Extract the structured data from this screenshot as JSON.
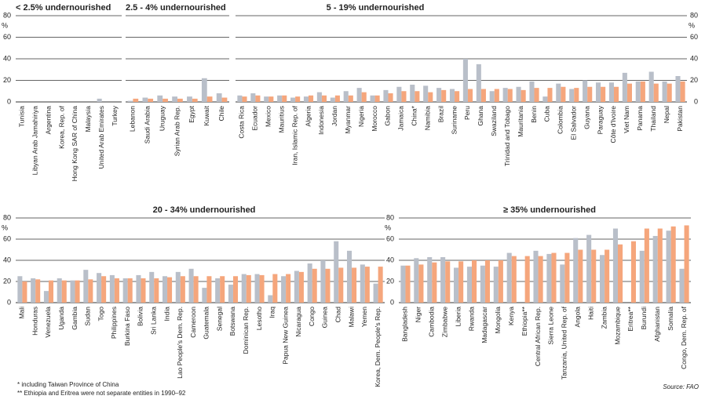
{
  "chart_data": [
    {
      "type": "bar",
      "title": "< 2.5% undernourished",
      "ylabel": "%",
      "ytick_side": "left",
      "categories": [
        "Tunisia",
        "Libyan Arab Jamahiriya",
        "Argentina",
        "Korea, Rep. of",
        "Hong Kong SAR of China",
        "Malaysia",
        "United Arab Emirates",
        "Turkey"
      ],
      "series": [
        {
          "color": "#b9bfc9",
          "values": [
            0,
            0,
            0,
            0,
            0,
            0,
            3,
            0
          ]
        },
        {
          "color": "#f5a67c",
          "values": [
            0,
            0,
            0,
            0,
            0,
            0,
            0,
            0
          ]
        }
      ],
      "ylim": [
        0,
        80
      ],
      "yticks": [
        0,
        20,
        40,
        60,
        80
      ],
      "grid": true
    },
    {
      "type": "bar",
      "title": "2.5 - 4% undernourished",
      "ytick_side": "none",
      "categories": [
        "Lebanon",
        "Saudi Arabia",
        "Uruguay",
        "Syrian Arab Rep.",
        "Egypt",
        "Kuwait",
        "Chile"
      ],
      "series": [
        {
          "color": "#b9bfc9",
          "values": [
            1,
            4,
            6,
            5,
            5,
            22,
            8
          ]
        },
        {
          "color": "#f5a67c",
          "values": [
            3,
            3,
            3,
            3,
            3,
            5,
            4
          ]
        }
      ],
      "ylim": [
        0,
        80
      ],
      "yticks": [
        0,
        20,
        40,
        60,
        80
      ],
      "grid": true
    },
    {
      "type": "bar",
      "title": "5 - 19% undernourished",
      "ylabel": "%",
      "ytick_side": "right",
      "categories": [
        "Costa Rica",
        "Ecuador",
        "Mexico",
        "Mauritius",
        "Iran, Islamic Rep. of",
        "Algeria",
        "Indonesia",
        "Jordan",
        "Myanmar",
        "Nigeria",
        "Morocco",
        "Gabon",
        "Jamaica",
        "China*",
        "Namibia",
        "Brazil",
        "Suriname",
        "Peru",
        "Ghana",
        "Swaziland",
        "Trinidad and Tobago",
        "Mauritania",
        "Benin",
        "Cuba",
        "Colombia",
        "El Salvador",
        "Guyana",
        "Paraguay",
        "Côte d'Ivoire",
        "Viet Nam",
        "Panama",
        "Thailand",
        "Nepal",
        "Pakistan"
      ],
      "series": [
        {
          "color": "#b9bfc9",
          "values": [
            6,
            8,
            5,
            6,
            4,
            5,
            9,
            4,
            10,
            13,
            6,
            11,
            14,
            16,
            15,
            13,
            12,
            40,
            35,
            10,
            13,
            14,
            19,
            5,
            17,
            12,
            20,
            18,
            18,
            27,
            19,
            28,
            19,
            24
          ]
        },
        {
          "color": "#f5a67c",
          "values": [
            5,
            6,
            5,
            6,
            5,
            6,
            6,
            6,
            6,
            9,
            6,
            8,
            10,
            10,
            9,
            11,
            10,
            12,
            12,
            12,
            12,
            11,
            13,
            13,
            14,
            13,
            14,
            14,
            14,
            17,
            19,
            17,
            17,
            19
          ]
        }
      ],
      "ylim": [
        0,
        80
      ],
      "yticks": [
        0,
        20,
        40,
        60,
        80
      ],
      "grid": true
    },
    {
      "type": "bar",
      "title": "20 - 34% undernourished",
      "ylabel": "%",
      "ytick_side": "left",
      "categories": [
        "Mali",
        "Honduras",
        "Venezuela",
        "Uganda",
        "Gambia",
        "Sudan",
        "Togo",
        "Philippines",
        "Burkina Faso",
        "Bolivia",
        "Sri Lanka",
        "India",
        "Lao People's Dem. Rep.",
        "Cameroon",
        "Guatemala",
        "Senegal",
        "Botswana",
        "Dominican Rep.",
        "Lesotho",
        "Iraq",
        "Papua New Guinea",
        "Nicaragua",
        "Congo",
        "Guinea",
        "Chad",
        "Malawi",
        "Yemen",
        "Korea, Dem. People's Rep."
      ],
      "series": [
        {
          "color": "#b9bfc9",
          "values": [
            25,
            23,
            11,
            23,
            21,
            31,
            28,
            26,
            23,
            26,
            29,
            25,
            29,
            32,
            14,
            23,
            17,
            27,
            27,
            7,
            25,
            30,
            37,
            40,
            58,
            49,
            36,
            18
          ]
        },
        {
          "color": "#f5a67c",
          "values": [
            20,
            22,
            21,
            21,
            21,
            22,
            25,
            23,
            23,
            23,
            23,
            24,
            25,
            25,
            25,
            25,
            25,
            26,
            26,
            27,
            27,
            29,
            32,
            32,
            33,
            33,
            34,
            34
          ]
        }
      ],
      "ylim": [
        0,
        80
      ],
      "yticks": [
        0,
        20,
        40,
        60,
        80
      ],
      "grid": true
    },
    {
      "type": "bar",
      "title": "≥ 35% undernourished",
      "ylabel": "%",
      "ytick_side": "left",
      "categories": [
        "Bangladesh",
        "Niger",
        "Cambodia",
        "Zimbabwe",
        "Liberia",
        "Rwanda",
        "Madagascar",
        "Mongolia",
        "Kenya",
        "Ethiopia**",
        "Central African Rep.",
        "Sierra Leone",
        "Tanzania, United Rep. of",
        "Angola",
        "Haiti",
        "Zambia",
        "Mozambique",
        "Eritrea**",
        "Burundi",
        "Afghanistan",
        "Somalia",
        "Congo, Dem. Rep. of"
      ],
      "series": [
        {
          "color": "#b9bfc9",
          "values": [
            35,
            42,
            43,
            43,
            33,
            34,
            35,
            34,
            47,
            null,
            49,
            46,
            36,
            61,
            64,
            45,
            70,
            null,
            49,
            63,
            68,
            32
          ]
        },
        {
          "color": "#f5a67c",
          "values": [
            35,
            36,
            38,
            39,
            39,
            40,
            40,
            40,
            44,
            44,
            44,
            47,
            47,
            50,
            50,
            50,
            55,
            58,
            70,
            70,
            72,
            73
          ]
        }
      ],
      "ylim": [
        0,
        80
      ],
      "yticks": [
        0,
        20,
        40,
        60,
        80
      ],
      "grid": true
    }
  ],
  "notes": [
    "* including Taiwan Province of China",
    "** Ethiopia and Eritrea were not separate entities in 1990–92"
  ],
  "source": "Source: FAO"
}
